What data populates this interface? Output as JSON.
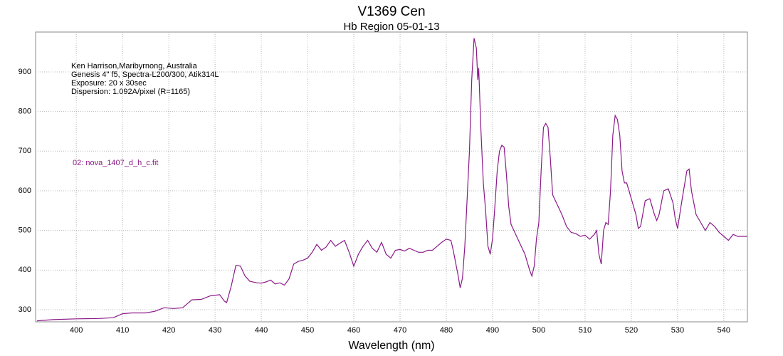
{
  "chart_data": {
    "type": "line",
    "title": "V1369 Cen",
    "subtitle": "Hb Region 05-01-13",
    "x_label": "Wavelength (nm)",
    "annotations": [
      "Ken Harrison,Maribyrnong, Australia",
      "Genesis 4\" f5, Spectra-L200/300, Atik314L",
      "Exposure: 20 x 30sec",
      "Dispersion: 1.092A/pixel (R=1165)"
    ],
    "xlim": [
      391.2,
      545.1
    ],
    "ylim": [
      269.5,
      1000.5
    ],
    "xticks": [
      400,
      410,
      420,
      430,
      440,
      450,
      460,
      470,
      480,
      490,
      500,
      510,
      520,
      530,
      540
    ],
    "yticks": [
      300,
      400,
      500,
      600,
      700,
      800,
      900
    ],
    "grid": true,
    "x": [
      391.5,
      395,
      400,
      405,
      408,
      410,
      412,
      415,
      417,
      419,
      421,
      423,
      425,
      427,
      429,
      431,
      432,
      432.5,
      433.5,
      434.5,
      435.5,
      436.5,
      437.5,
      439,
      440,
      441,
      442,
      443,
      444,
      445,
      446,
      447,
      448,
      449,
      450,
      451,
      452,
      453,
      454,
      455,
      456,
      457,
      458,
      459,
      460,
      461,
      462,
      463,
      464,
      465,
      466,
      467,
      468,
      469,
      470,
      471,
      472,
      473,
      474,
      475,
      476,
      477,
      478,
      479,
      480,
      481,
      481.5,
      482.5,
      483,
      483.5,
      484,
      485,
      485.5,
      486,
      486.5,
      486.8,
      487,
      487.5,
      488,
      488.5,
      489,
      489.5,
      490,
      490.5,
      491,
      491.5,
      492,
      492.5,
      493,
      493.5,
      494,
      495,
      496,
      497,
      498,
      498.5,
      499,
      499.5,
      500,
      500.5,
      501,
      501.5,
      502,
      502.5,
      503,
      504,
      505,
      506,
      507,
      508,
      509,
      510,
      511,
      512,
      512.5,
      513,
      513.5,
      514,
      514.5,
      515,
      515.5,
      516,
      516.5,
      517,
      517.5,
      518,
      518.5,
      519,
      520,
      521,
      521.5,
      522,
      523,
      524,
      525,
      525.5,
      526,
      527,
      528,
      529,
      529.5,
      530,
      531,
      532,
      532.5,
      533,
      534,
      535,
      536,
      537,
      538,
      539,
      540,
      541,
      542,
      543,
      545
    ],
    "series": [
      {
        "name": "02: nova_1407_d_h_c.fit",
        "color": "#8b1a89",
        "values": [
          272,
          275,
          277,
          278,
          280,
          290,
          292,
          292,
          296,
          305,
          303,
          305,
          325,
          326,
          335,
          338,
          322,
          318,
          360,
          412,
          410,
          385,
          372,
          368,
          367,
          370,
          375,
          365,
          368,
          362,
          378,
          415,
          422,
          425,
          430,
          445,
          465,
          450,
          458,
          475,
          460,
          468,
          475,
          445,
          410,
          440,
          460,
          475,
          455,
          445,
          470,
          440,
          430,
          450,
          452,
          448,
          455,
          450,
          445,
          445,
          450,
          450,
          460,
          470,
          478,
          475,
          450,
          390,
          355,
          380,
          460,
          700,
          880,
          985,
          960,
          880,
          910,
          750,
          620,
          550,
          460,
          440,
          480,
          560,
          650,
          700,
          715,
          710,
          640,
          560,
          515,
          490,
          465,
          440,
          400,
          385,
          410,
          480,
          520,
          650,
          760,
          770,
          760,
          680,
          590,
          565,
          540,
          510,
          495,
          492,
          485,
          488,
          478,
          490,
          500,
          440,
          415,
          500,
          520,
          515,
          600,
          740,
          790,
          780,
          740,
          650,
          620,
          620,
          580,
          540,
          505,
          510,
          575,
          580,
          540,
          525,
          540,
          600,
          605,
          570,
          530,
          505,
          580,
          650,
          655,
          600,
          540,
          520,
          500,
          520,
          510,
          495,
          485,
          475,
          490,
          485,
          485
        ]
      }
    ]
  }
}
